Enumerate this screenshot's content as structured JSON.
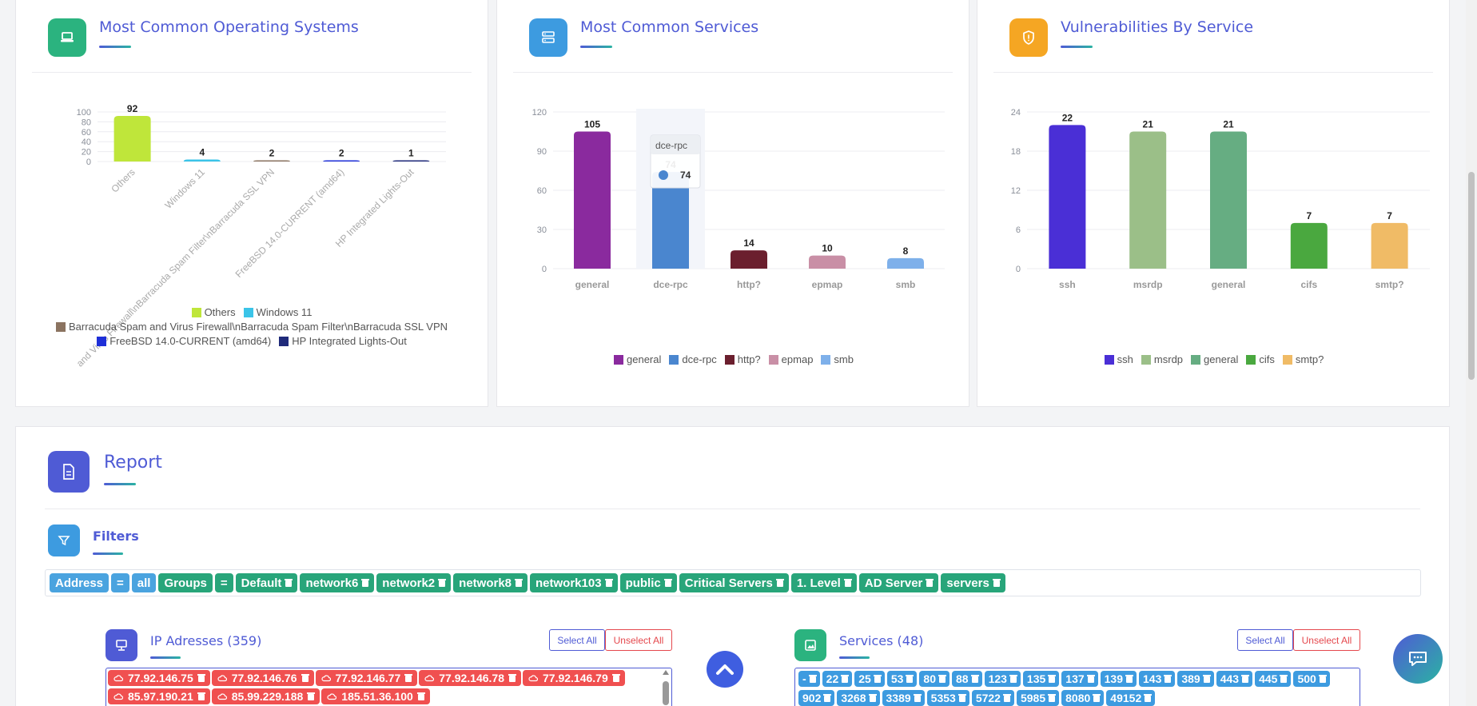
{
  "colors": {
    "title": "#4f5bd5",
    "accent_green": "#28a57a",
    "accent_blue": "#3d9be0",
    "accent_orange": "#f5a623",
    "danger": "#f05050"
  },
  "os_card": {
    "title": "Most Common Operating Systems",
    "icon": "laptop-icon",
    "chart_data": {
      "type": "bar",
      "categories": [
        "Others",
        "Windows 11",
        "Barracuda Spam and Virus Firewall\\nBarracuda Spam Filter\\nBarracuda SSL VPN",
        "FreeBSD 14.0-CURRENT (amd64)",
        "HP Integrated Lights-Out"
      ],
      "category_tick_labels": [
        "Others",
        "Windows 11",
        "and Virus Firewall\\nBarracuda Spam Filter\\nBarracuda SSL VPN",
        "FreeBSD 14.0-CURRENT (amd64)",
        "HP Integrated Lights-Out"
      ],
      "values": [
        92,
        4,
        2,
        2,
        1
      ],
      "colors": [
        "#bfe63a",
        "#3bc4e8",
        "#8b7360",
        "#1e2fd8",
        "#1f2a7a"
      ],
      "ylim": [
        0,
        100
      ],
      "yticks": [
        0,
        20,
        40,
        60,
        80,
        100
      ],
      "legend_labels": [
        "Others",
        "Windows 11",
        "Barracuda Spam and Virus Firewall\\nBarracuda Spam Filter\\nBarracuda SSL VPN",
        "FreeBSD 14.0-CURRENT (amd64)",
        "HP Integrated Lights-Out"
      ],
      "legend": "bottom",
      "grid": true
    }
  },
  "svc_card": {
    "title": "Most Common Services",
    "icon": "server-icon",
    "chart_data": {
      "type": "bar",
      "categories": [
        "general",
        "dce-rpc",
        "http?",
        "epmap",
        "smb"
      ],
      "values": [
        105,
        74,
        14,
        10,
        8
      ],
      "colors": [
        "#8a2a9e",
        "#4a86cf",
        "#6b1f2e",
        "#c98fa6",
        "#7eb0ea"
      ],
      "ylim": [
        0,
        120
      ],
      "yticks": [
        0,
        30,
        60,
        90,
        120
      ],
      "legend": "bottom",
      "grid": true
    },
    "tooltip": {
      "title": "dce-rpc",
      "value": "74"
    }
  },
  "vuln_card": {
    "title": "Vulnerabilities By Service",
    "icon": "shield-icon",
    "chart_data": {
      "type": "bar",
      "categories": [
        "ssh",
        "msrdp",
        "general",
        "cifs",
        "smtp?"
      ],
      "values": [
        22,
        21,
        21,
        7,
        7
      ],
      "colors": [
        "#4a2fd6",
        "#9bbf88",
        "#66ad82",
        "#4aa83f",
        "#f0bb66"
      ],
      "ylim": [
        0,
        24
      ],
      "yticks": [
        0,
        6,
        12,
        18,
        24
      ],
      "legend": "bottom",
      "grid": true
    }
  },
  "report": {
    "title": "Report",
    "icon": "document-icon",
    "filters": {
      "title": "Filters",
      "icon": "filter-icon",
      "chips": [
        {
          "label": "Address",
          "style": "blue",
          "removable": false
        },
        {
          "label": "=",
          "style": "blue",
          "removable": false
        },
        {
          "label": "all",
          "style": "blue",
          "removable": false
        },
        {
          "label": "Groups",
          "style": "green",
          "removable": false
        },
        {
          "label": "=",
          "style": "green",
          "removable": false
        },
        {
          "label": "Default",
          "style": "green",
          "removable": true
        },
        {
          "label": "network6",
          "style": "green",
          "removable": true
        },
        {
          "label": "network2",
          "style": "green",
          "removable": true
        },
        {
          "label": "network8",
          "style": "green",
          "removable": true
        },
        {
          "label": "network103",
          "style": "green",
          "removable": true
        },
        {
          "label": "public",
          "style": "green",
          "removable": true
        },
        {
          "label": "Critical Servers",
          "style": "green",
          "removable": true
        },
        {
          "label": "1. Level",
          "style": "green",
          "removable": true
        },
        {
          "label": "AD Server",
          "style": "green",
          "removable": true
        },
        {
          "label": "servers",
          "style": "green",
          "removable": true
        }
      ]
    },
    "ip_panel": {
      "title": "IP Adresses (359)",
      "icon": "monitor-icon",
      "select_all": "Select All",
      "unselect_all": "Unselect All",
      "items": [
        "77.92.146.75",
        "77.92.146.76",
        "77.92.146.77",
        "77.92.146.78",
        "77.92.146.79",
        "85.97.190.21",
        "85.99.229.188",
        "185.51.36.100"
      ]
    },
    "services_panel": {
      "title": "Services (48)",
      "icon": "image-icon",
      "select_all": "Select All",
      "unselect_all": "Unselect All",
      "items": [
        "-",
        "22",
        "25",
        "53",
        "80",
        "88",
        "123",
        "135",
        "137",
        "139",
        "143",
        "389",
        "443",
        "445",
        "500",
        "902",
        "3268",
        "3389",
        "5353",
        "5722",
        "5985",
        "8080",
        "49152"
      ]
    }
  },
  "scroll_top_button": {
    "icon": "chevron-up-icon"
  },
  "chat_button": {
    "icon": "chat-icon"
  }
}
